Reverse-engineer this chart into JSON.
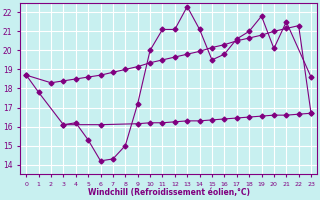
{
  "xlabel": "Windchill (Refroidissement éolien,°C)",
  "background_color": "#c8f0f0",
  "grid_color": "#ffffff",
  "line_color": "#800080",
  "xlim": [
    -0.5,
    23.5
  ],
  "ylim": [
    13.5,
    22.5
  ],
  "yticks": [
    14,
    15,
    16,
    17,
    18,
    19,
    20,
    21,
    22
  ],
  "xticks": [
    0,
    1,
    2,
    3,
    4,
    5,
    6,
    7,
    8,
    9,
    10,
    11,
    12,
    13,
    14,
    15,
    16,
    17,
    18,
    19,
    20,
    21,
    22,
    23
  ],
  "series1": {
    "x": [
      0,
      1,
      3,
      4,
      5,
      6,
      7,
      8,
      9,
      10,
      11,
      12,
      13,
      14,
      15,
      16,
      17,
      18,
      19,
      20,
      21,
      23
    ],
    "y": [
      18.7,
      17.8,
      16.1,
      16.2,
      15.3,
      14.2,
      14.3,
      15.0,
      17.2,
      20.0,
      21.1,
      21.1,
      22.3,
      21.1,
      19.5,
      19.8,
      20.6,
      21.0,
      21.8,
      20.1,
      21.5,
      18.6
    ]
  },
  "series2": {
    "x": [
      0,
      2,
      3,
      4,
      5,
      6,
      7,
      8,
      9,
      10,
      11,
      12,
      13,
      14,
      15,
      16,
      17,
      18,
      19,
      20,
      21,
      22,
      23
    ],
    "y": [
      18.7,
      18.3,
      18.4,
      18.5,
      18.6,
      18.7,
      18.85,
      19.0,
      19.15,
      19.35,
      19.5,
      19.65,
      19.8,
      19.95,
      20.15,
      20.3,
      20.5,
      20.65,
      20.8,
      21.0,
      21.15,
      21.3,
      16.7
    ]
  },
  "series3": {
    "x": [
      3,
      6,
      9,
      10,
      11,
      12,
      13,
      14,
      15,
      16,
      17,
      18,
      19,
      20,
      21,
      22,
      23
    ],
    "y": [
      16.1,
      16.1,
      16.15,
      16.2,
      16.2,
      16.25,
      16.3,
      16.3,
      16.35,
      16.4,
      16.45,
      16.5,
      16.55,
      16.6,
      16.6,
      16.65,
      16.7
    ]
  }
}
